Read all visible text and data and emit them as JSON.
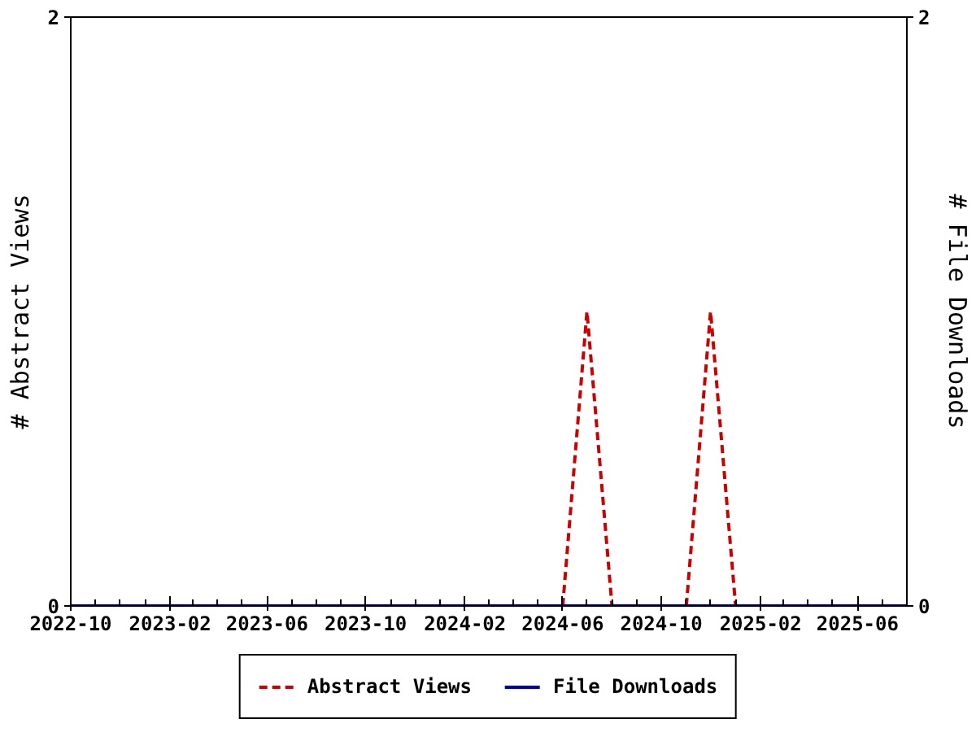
{
  "chart_data": {
    "type": "line",
    "x": [
      "2022-10",
      "2022-11",
      "2022-12",
      "2023-01",
      "2023-02",
      "2023-03",
      "2023-04",
      "2023-05",
      "2023-06",
      "2023-07",
      "2023-08",
      "2023-09",
      "2023-10",
      "2023-11",
      "2023-12",
      "2024-01",
      "2024-02",
      "2024-03",
      "2024-04",
      "2024-05",
      "2024-06",
      "2024-07",
      "2024-08",
      "2024-09",
      "2024-10",
      "2024-11",
      "2024-12",
      "2025-01",
      "2025-02",
      "2025-03",
      "2025-04",
      "2025-05",
      "2025-06",
      "2025-07",
      "2025-08"
    ],
    "series": [
      {
        "name": "Abstract Views",
        "color": "#cc0000",
        "line_style": "dashed",
        "values": [
          null,
          null,
          null,
          null,
          null,
          null,
          null,
          null,
          null,
          null,
          null,
          null,
          null,
          null,
          null,
          null,
          null,
          null,
          null,
          null,
          0,
          1,
          0,
          null,
          null,
          0,
          1,
          0,
          null,
          null,
          null,
          null,
          null,
          null,
          null
        ]
      },
      {
        "name": "File Downloads",
        "color": "#0000b0",
        "line_style": "solid",
        "values": [
          0,
          0,
          0,
          0,
          0,
          0,
          0,
          0,
          0,
          0,
          0,
          0,
          0,
          0,
          0,
          0,
          0,
          0,
          0,
          0,
          0,
          0,
          0,
          0,
          0,
          0,
          0,
          0,
          0,
          0,
          0,
          0,
          0,
          0,
          0
        ]
      }
    ],
    "ylabel": "# Abstract Views",
    "y2label": "# File Downloads",
    "xlim": [
      "2022-10",
      "2025-08"
    ],
    "xticks": [
      "2022-10",
      {
        "value": "2022-11",
        "label": null
      },
      {
        "value": "2022-12",
        "label": null
      },
      {
        "value": "2023-01",
        "label": null
      },
      "2023-02",
      {
        "value": "2023-03",
        "label": null
      },
      {
        "value": "2023-04",
        "label": null
      },
      {
        "value": "2023-05",
        "label": null
      },
      "2023-06",
      {
        "value": "2023-07",
        "label": null
      },
      {
        "value": "2023-08",
        "label": null
      },
      {
        "value": "2023-09",
        "label": null
      },
      "2023-10",
      {
        "value": "2023-11",
        "label": null
      },
      {
        "value": "2023-12",
        "label": null
      },
      {
        "value": "2024-01",
        "label": null
      },
      "2024-02",
      {
        "value": "2024-03",
        "label": null
      },
      {
        "value": "2024-04",
        "label": null
      },
      {
        "value": "2024-05",
        "label": null
      },
      "2024-06",
      {
        "value": "2024-07",
        "label": null
      },
      {
        "value": "2024-08",
        "label": null
      },
      {
        "value": "2024-09",
        "label": null
      },
      "2024-10",
      {
        "value": "2024-11",
        "label": null
      },
      {
        "value": "2024-12",
        "label": null
      },
      {
        "value": "2025-01",
        "label": null
      },
      "2025-02",
      {
        "value": "2025-03",
        "label": null
      },
      {
        "value": "2025-04",
        "label": null
      },
      {
        "value": "2025-05",
        "label": null
      },
      "2025-06",
      {
        "value": "2025-07",
        "label": null
      },
      {
        "value": "2025-08",
        "label": null
      }
    ],
    "ylim": [
      0,
      2
    ],
    "yticks": [
      0,
      2
    ],
    "y2lim": [
      0,
      2
    ],
    "y2ticks": [
      0,
      2
    ],
    "grid": false,
    "legend": "bottom"
  }
}
